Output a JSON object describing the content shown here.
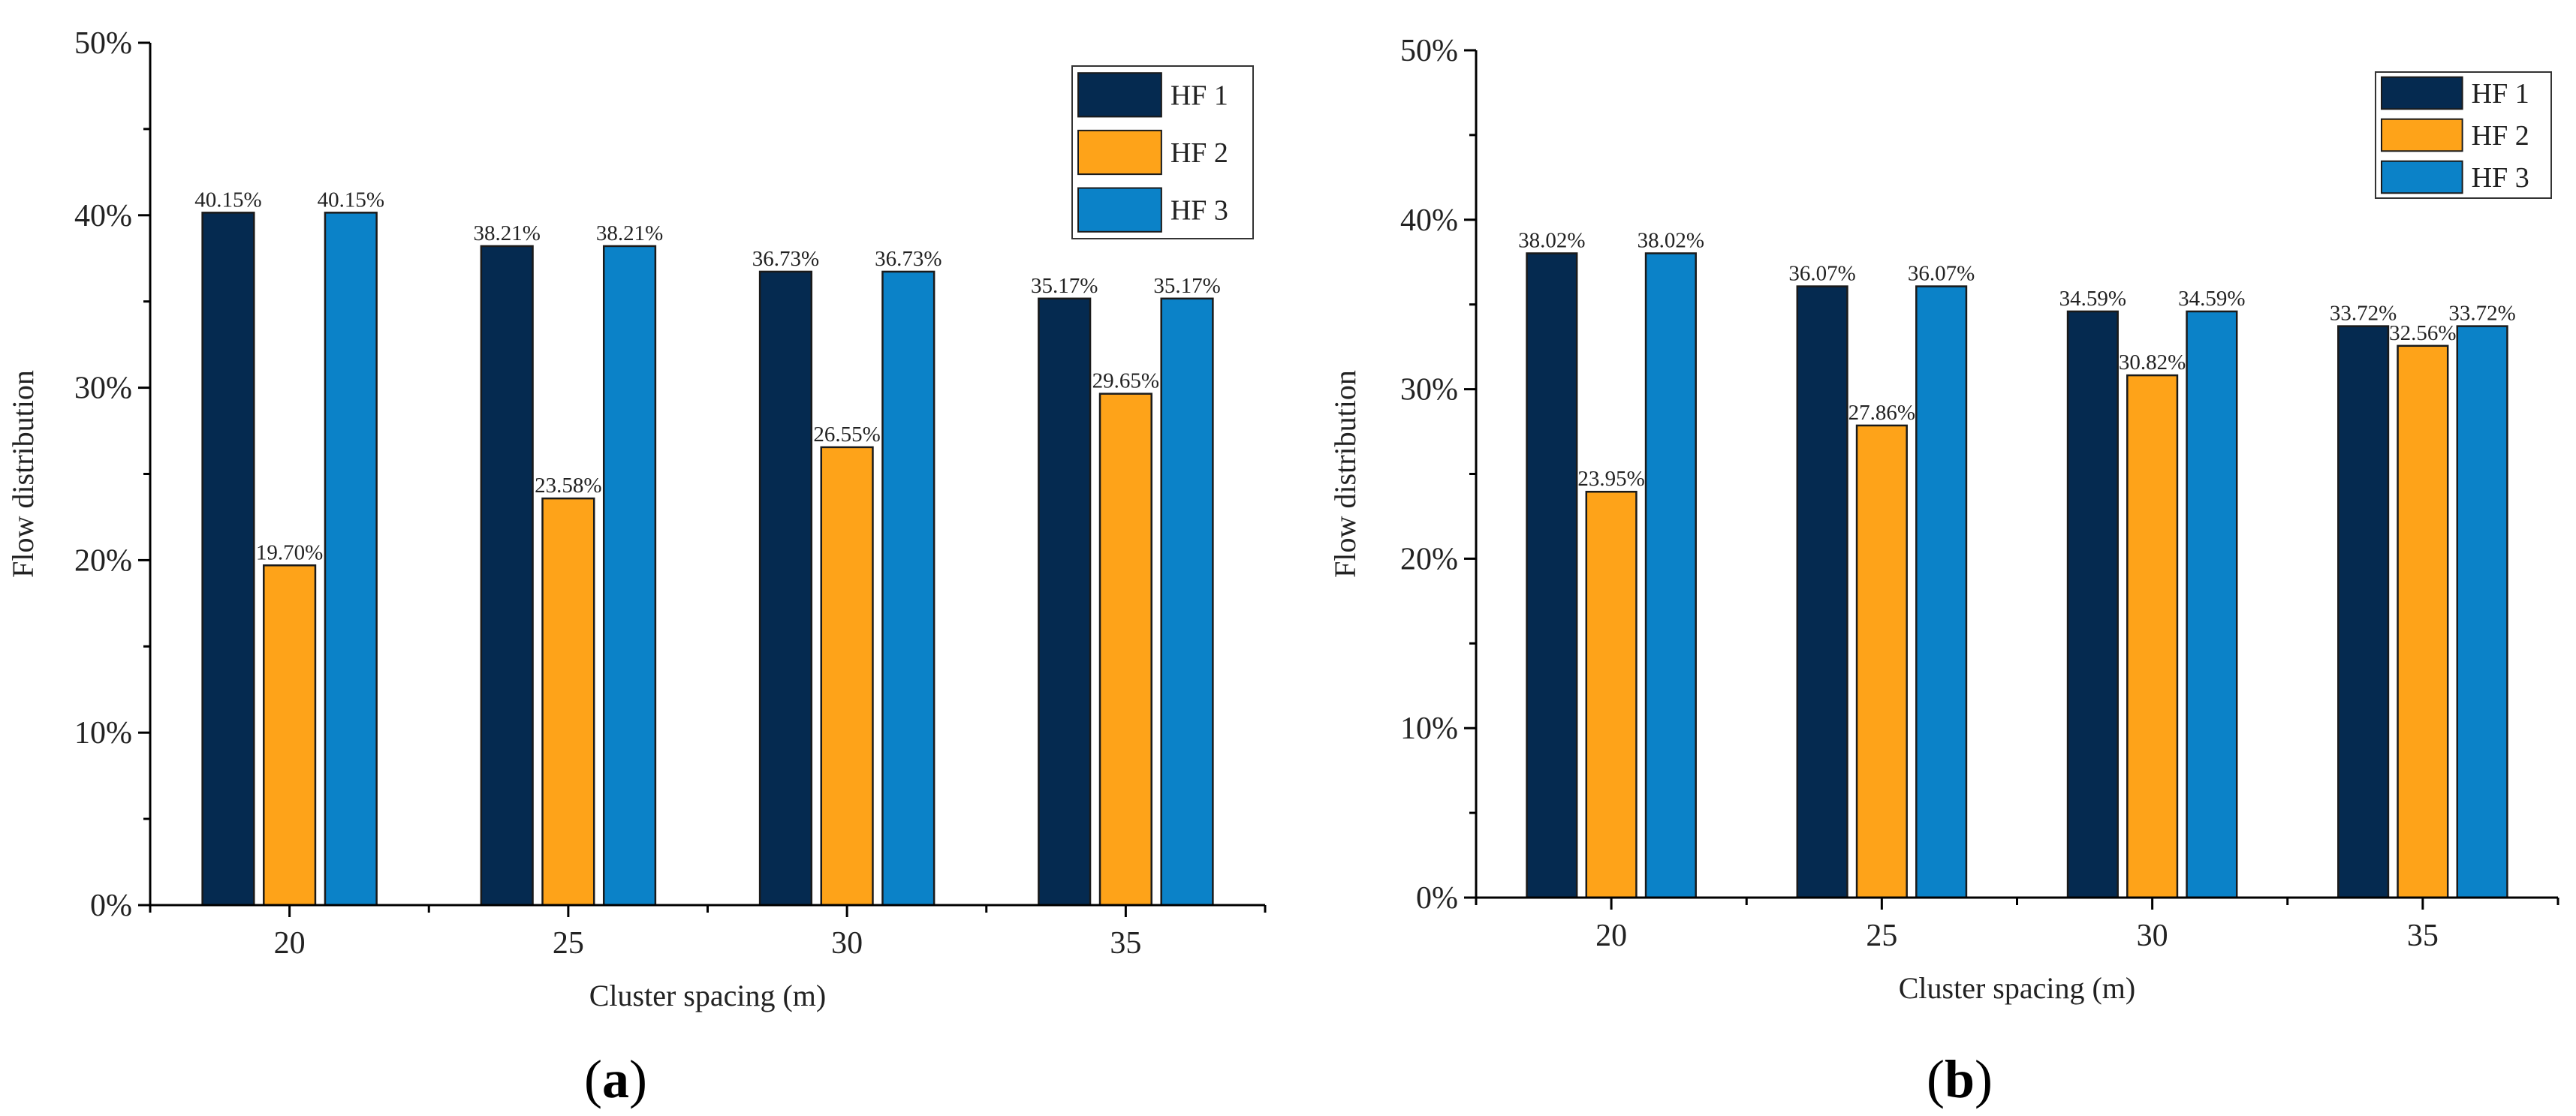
{
  "colors": {
    "HF 1": "#052a50",
    "HF 2": "#fea319",
    "HF 3": "#0b82c8"
  },
  "chart_data": [
    {
      "panel": "a",
      "type": "bar",
      "xlabel": "Cluster spacing (m)",
      "ylabel": "Flow distribution",
      "ylim": [
        0,
        50
      ],
      "yticks": [
        "0%",
        "10%",
        "20%",
        "30%",
        "40%",
        "50%"
      ],
      "categories": [
        "20",
        "25",
        "30",
        "35"
      ],
      "legend": "top-right",
      "series": [
        {
          "name": "HF 1",
          "values": [
            40.15,
            38.21,
            36.73,
            35.17
          ],
          "labels": [
            "40.15%",
            "38.21%",
            "36.73%",
            "35.17%"
          ]
        },
        {
          "name": "HF 2",
          "values": [
            19.7,
            23.58,
            26.55,
            29.65
          ],
          "labels": [
            "19.70%",
            "23.58%",
            "26.55%",
            "29.65%"
          ]
        },
        {
          "name": "HF 3",
          "values": [
            40.15,
            38.21,
            36.73,
            35.17
          ],
          "labels": [
            "40.15%",
            "38.21%",
            "36.73%",
            "35.17%"
          ]
        }
      ]
    },
    {
      "panel": "b",
      "type": "bar",
      "xlabel": "Cluster spacing (m)",
      "ylabel": "Flow distribution",
      "ylim": [
        0,
        50
      ],
      "yticks": [
        "0%",
        "10%",
        "20%",
        "30%",
        "40%",
        "50%"
      ],
      "categories": [
        "20",
        "25",
        "30",
        "35"
      ],
      "legend": "top-right",
      "series": [
        {
          "name": "HF 1",
          "values": [
            38.02,
            36.07,
            34.59,
            33.72
          ],
          "labels": [
            "38.02%",
            "36.07%",
            "34.59%",
            "33.72%"
          ]
        },
        {
          "name": "HF 2",
          "values": [
            23.95,
            27.86,
            30.82,
            32.56
          ],
          "labels": [
            "23.95%",
            "27.86%",
            "30.82%",
            "32.56%"
          ]
        },
        {
          "name": "HF 3",
          "values": [
            38.02,
            36.07,
            34.59,
            33.72
          ],
          "labels": [
            "38.02%",
            "36.07%",
            "34.59%",
            "33.72%"
          ]
        }
      ]
    }
  ],
  "panel_labels": [
    {
      "open": "(",
      "letter": "a",
      "close": ")"
    },
    {
      "open": "(",
      "letter": "b",
      "close": ")"
    }
  ]
}
